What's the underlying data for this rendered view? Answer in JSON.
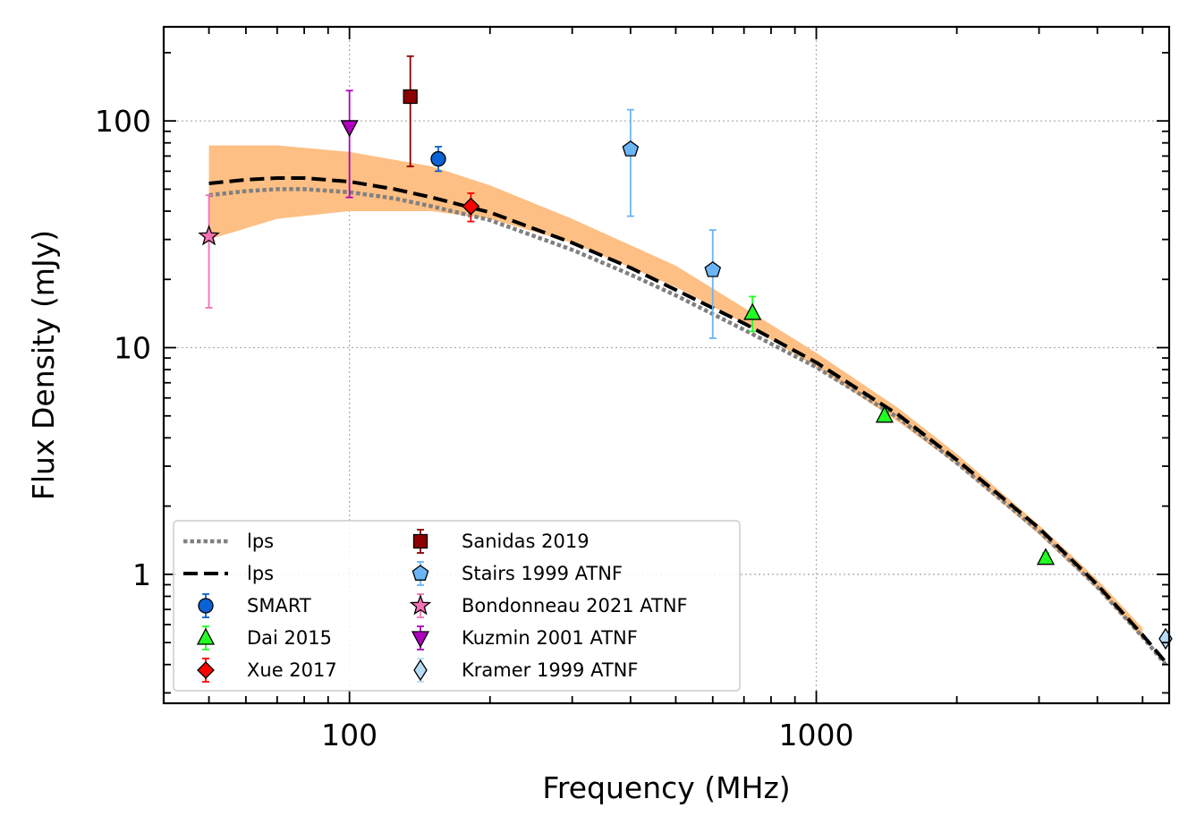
{
  "chart_data": {
    "type": "scatter",
    "xlabel": "Frequency (MHz)",
    "ylabel": "Flux Density (mJy)",
    "xscale": "log",
    "yscale": "log",
    "xlim": [
      40,
      5700
    ],
    "ylim": [
      0.27,
      260
    ],
    "grid": true,
    "legend_position": "lower-left",
    "x_tick_labels": [
      {
        "value": 100,
        "label": "100"
      },
      {
        "value": 1000,
        "label": "1000"
      }
    ],
    "y_tick_labels": [
      {
        "value": 1,
        "label": "1"
      },
      {
        "value": 10,
        "label": "10"
      },
      {
        "value": 100,
        "label": "100"
      }
    ],
    "fit_band": {
      "color": "#fdbf84",
      "upper": [
        [
          50,
          78
        ],
        [
          70,
          78
        ],
        [
          100,
          73
        ],
        [
          150,
          63
        ],
        [
          200,
          52
        ],
        [
          300,
          37
        ],
        [
          500,
          23
        ],
        [
          700,
          15
        ],
        [
          1000,
          9.5
        ],
        [
          1500,
          5.4
        ],
        [
          2000,
          3.4
        ],
        [
          3000,
          1.65
        ],
        [
          4000,
          0.95
        ],
        [
          5000,
          0.58
        ]
      ],
      "lower": [
        [
          50,
          30
        ],
        [
          70,
          37
        ],
        [
          100,
          40
        ],
        [
          150,
          40
        ],
        [
          200,
          37
        ],
        [
          300,
          29
        ],
        [
          500,
          18.5
        ],
        [
          700,
          12.8
        ],
        [
          1000,
          8.2
        ],
        [
          1500,
          4.7
        ],
        [
          2000,
          3.05
        ],
        [
          3000,
          1.5
        ],
        [
          4000,
          0.86
        ],
        [
          5000,
          0.52
        ]
      ]
    },
    "lines": [
      {
        "name": "lps",
        "style": "dotted",
        "color": "#808080",
        "points": [
          [
            50,
            47
          ],
          [
            60,
            49
          ],
          [
            70,
            50
          ],
          [
            80,
            50
          ],
          [
            100,
            48.5
          ],
          [
            125,
            45.5
          ],
          [
            150,
            42
          ],
          [
            200,
            36.5
          ],
          [
            300,
            27
          ],
          [
            400,
            21
          ],
          [
            500,
            17
          ],
          [
            700,
            12
          ],
          [
            1000,
            8.2
          ],
          [
            1500,
            4.9
          ],
          [
            2000,
            3.1
          ],
          [
            3000,
            1.55
          ],
          [
            4000,
            0.88
          ],
          [
            5000,
            0.53
          ],
          [
            5600,
            0.4
          ]
        ]
      },
      {
        "name": "lps",
        "style": "dashed",
        "color": "#000000",
        "points": [
          [
            50,
            53
          ],
          [
            60,
            55
          ],
          [
            70,
            56
          ],
          [
            80,
            56
          ],
          [
            100,
            54
          ],
          [
            125,
            50
          ],
          [
            150,
            46
          ],
          [
            200,
            39.5
          ],
          [
            300,
            29
          ],
          [
            400,
            22.5
          ],
          [
            500,
            18
          ],
          [
            700,
            12.8
          ],
          [
            1000,
            8.6
          ],
          [
            1500,
            5.05
          ],
          [
            2000,
            3.2
          ],
          [
            3000,
            1.6
          ],
          [
            4000,
            0.9
          ],
          [
            5000,
            0.54
          ],
          [
            5600,
            0.41
          ]
        ]
      }
    ],
    "series": [
      {
        "name": "SMART",
        "marker": "circle",
        "color": "#0b62d5",
        "edge": "#000000",
        "ecolor": "#0b62d5",
        "points": [
          {
            "x": 155,
            "y": 68,
            "ylo": 60,
            "yhi": 77
          }
        ]
      },
      {
        "name": "Dai 2015",
        "marker": "triangle-up",
        "color": "#22ff22",
        "edge": "#000000",
        "ecolor": "#22ff22",
        "points": [
          {
            "x": 730,
            "y": 14.2,
            "ylo": 11.8,
            "yhi": 16.8
          },
          {
            "x": 1400,
            "y": 5.0,
            "ylo": 4.7,
            "yhi": 5.3
          },
          {
            "x": 3100,
            "y": 1.18,
            "ylo": 1.12,
            "yhi": 1.24
          }
        ]
      },
      {
        "name": "Xue 2017",
        "marker": "diamond",
        "color": "#ff0000",
        "edge": "#000000",
        "ecolor": "#ff0000",
        "points": [
          {
            "x": 182,
            "y": 42,
            "ylo": 36,
            "yhi": 48
          }
        ]
      },
      {
        "name": "Sanidas 2019",
        "marker": "square",
        "color": "#8b0000",
        "edge": "#000000",
        "ecolor": "#8b0000",
        "points": [
          {
            "x": 135,
            "y": 128,
            "ylo": 63,
            "yhi": 193
          }
        ]
      },
      {
        "name": "Stairs 1999 ATNF",
        "marker": "pentagon",
        "color": "#6cb4f5",
        "edge": "#000000",
        "ecolor": "#6cb4f5",
        "points": [
          {
            "x": 400,
            "y": 75,
            "ylo": 38,
            "yhi": 112
          },
          {
            "x": 600,
            "y": 22,
            "ylo": 11,
            "yhi": 33
          }
        ]
      },
      {
        "name": "Bondonneau 2021 ATNF",
        "marker": "star",
        "color": "#f472b6",
        "edge": "#000000",
        "ecolor": "#f472b6",
        "points": [
          {
            "x": 50,
            "y": 31,
            "ylo": 15,
            "yhi": 47
          }
        ]
      },
      {
        "name": "Kuzmin 2001 ATNF",
        "marker": "triangle-down",
        "color": "#b000c0",
        "edge": "#000000",
        "ecolor": "#b000c0",
        "points": [
          {
            "x": 100,
            "y": 94,
            "ylo": 46,
            "yhi": 136
          }
        ]
      },
      {
        "name": "Kramer 1999 ATNF",
        "marker": "thin-diamond",
        "color": "#b8dcf8",
        "edge": "#000000",
        "ecolor": "#b8dcf8",
        "points": [
          {
            "x": 5600,
            "y": 0.52
          }
        ]
      }
    ]
  }
}
